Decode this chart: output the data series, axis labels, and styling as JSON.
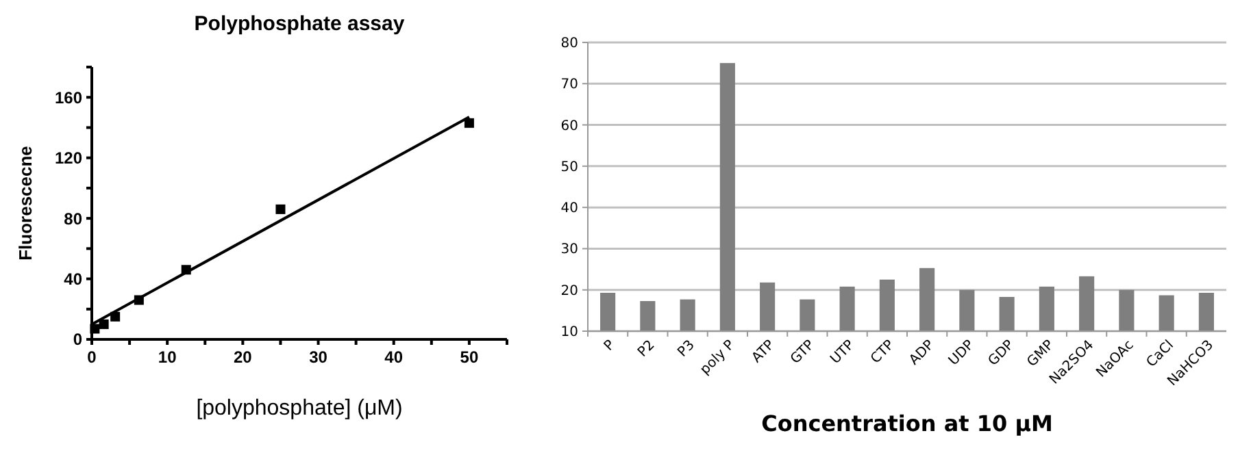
{
  "chart_data": [
    {
      "type": "scatter",
      "title": "Polyphosphate assay",
      "xlabel": "[polyphosphate]  (μM)",
      "ylabel": "Fluorescecne",
      "xlim": [
        0,
        55
      ],
      "xticks": [
        0,
        {
          "value": 5,
          "label": null
        },
        10,
        {
          "value": 15,
          "label": null
        },
        20,
        {
          "value": 25,
          "label": null
        },
        30,
        {
          "value": 35,
          "label": null
        },
        40,
        {
          "value": 45,
          "label": null
        },
        50,
        {
          "value": 55,
          "label": null
        }
      ],
      "ylim": [
        0,
        180
      ],
      "yticks": [
        0,
        {
          "value": 20,
          "label": null
        },
        40,
        {
          "value": 60,
          "label": null
        },
        80,
        {
          "value": 100,
          "label": null
        },
        120,
        {
          "value": 140,
          "label": null
        },
        160,
        {
          "value": 180,
          "label": null
        }
      ],
      "grid": false,
      "series": [
        {
          "marker": "square",
          "color": "#000000",
          "x": [
            0.4,
            1.6,
            3.1,
            6.25,
            12.5,
            25,
            50
          ],
          "values": [
            7,
            10,
            15,
            26,
            46,
            86,
            143
          ]
        },
        {
          "type": "line",
          "line_style": "solid",
          "color": "#000000",
          "x": [
            0,
            50
          ],
          "values": [
            10,
            147
          ]
        }
      ]
    },
    {
      "type": "bar",
      "xlabel": "Concentration  at 10 μM",
      "categories": [
        "P",
        "P2",
        "P3",
        "poly P",
        "ATP",
        "GTP",
        "UTP",
        "CTP",
        "ADP",
        "UDP",
        "GDP",
        "GMP",
        "Na2SO4",
        "NaOAc",
        "CaCl",
        "NaHCO3"
      ],
      "ylim": [
        10,
        80
      ],
      "yticks": [
        10,
        20,
        30,
        40,
        50,
        60,
        70,
        80
      ],
      "grid": "y",
      "series": [
        {
          "color": "#7f7f7f",
          "values": [
            19.3,
            17.3,
            17.7,
            75,
            21.8,
            17.7,
            20.8,
            22.5,
            25.3,
            20,
            18.3,
            20.8,
            23.3,
            20,
            18.7,
            19.3
          ]
        }
      ]
    }
  ]
}
